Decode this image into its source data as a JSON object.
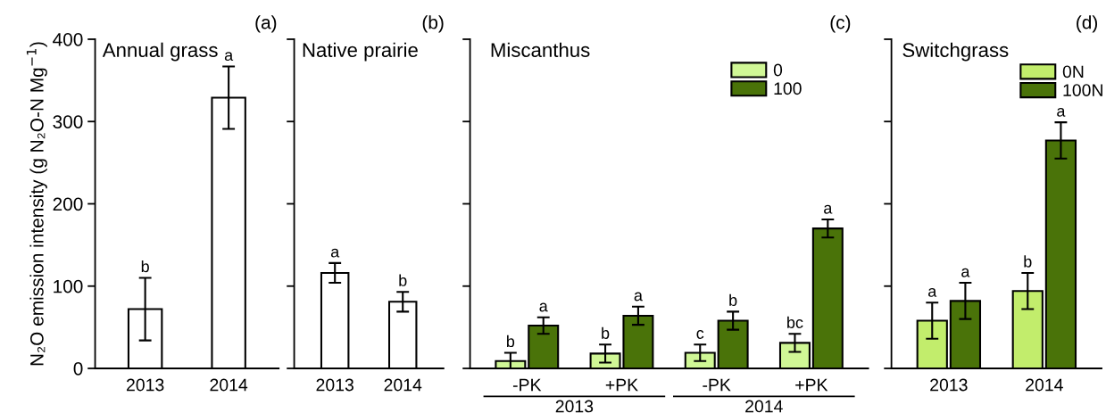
{
  "chart_data": [
    {
      "type": "bar",
      "title": "Annual grass",
      "ylabel": "N₂O emission intensity (g N₂O-N Mg$^{−1}$)",
      "annotations": [
        "(a)"
      ],
      "categories": [
        "2013",
        "2014"
      ],
      "values": [
        72,
        329
      ],
      "errors": [
        38,
        38
      ],
      "value_labels": [
        "b",
        "a"
      ],
      "color": "#ffffff",
      "ylim": [
        0,
        400
      ],
      "yticks": [
        0,
        100,
        200,
        300,
        400
      ],
      "grid": false,
      "legend": false
    },
    {
      "type": "bar",
      "title": "Native prairie",
      "annotations": [
        "(b)"
      ],
      "categories": [
        "2013",
        "2014"
      ],
      "values": [
        116,
        81
      ],
      "errors": [
        12,
        12
      ],
      "value_labels": [
        "a",
        "b"
      ],
      "color": "#ffffff",
      "ylim": [
        0,
        400
      ],
      "yticks": [
        0,
        100,
        200,
        300,
        400
      ],
      "tick_labels": "x",
      "grid": false,
      "legend": false
    },
    {
      "type": "bar",
      "title": "Miscanthus",
      "annotations": [
        "(c)",
        "2013",
        "2014"
      ],
      "categories": [
        "-PK",
        "+PK",
        "-PK",
        "+PK"
      ],
      "series": [
        {
          "name": "0",
          "color": "#d0f796",
          "values": [
            9,
            18,
            19,
            31
          ],
          "errors": [
            10,
            11,
            10,
            11
          ],
          "value_labels": [
            "b",
            "b",
            "c",
            "bc"
          ]
        },
        {
          "name": "100",
          "color": "#4a7309",
          "values": [
            52,
            64,
            58,
            170
          ],
          "errors": [
            10,
            11,
            11,
            11
          ],
          "value_labels": [
            "a",
            "a",
            "b",
            "a"
          ]
        }
      ],
      "ylim": [
        0,
        400
      ],
      "yticks": [
        0,
        100,
        200,
        300,
        400
      ],
      "tick_labels": "x",
      "grid": false,
      "legend": "top right"
    },
    {
      "type": "bar",
      "title": "Switchgrass",
      "annotations": [
        "(d)"
      ],
      "categories": [
        "2013",
        "2014"
      ],
      "series": [
        {
          "name": "0N",
          "color": "#c2ed6c",
          "values": [
            58,
            94
          ],
          "errors": [
            22,
            22
          ],
          "value_labels": [
            "a",
            "b"
          ]
        },
        {
          "name": "100N",
          "color": "#4a7309",
          "values": [
            82,
            277
          ],
          "errors": [
            22,
            22
          ],
          "value_labels": [
            "a",
            "a"
          ]
        }
      ],
      "ylim": [
        0,
        400
      ],
      "yticks": [
        0,
        100,
        200,
        300,
        400
      ],
      "tick_labels": "x",
      "grid": false,
      "legend": "top right"
    }
  ]
}
